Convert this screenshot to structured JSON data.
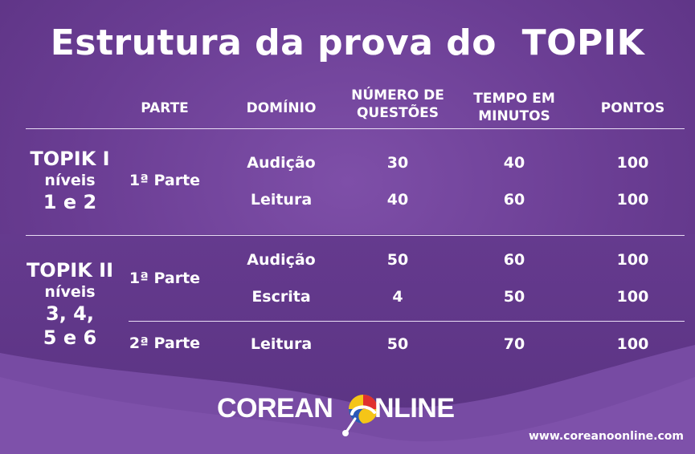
{
  "title": "Estrutura da prova do  TOPIK",
  "headers": {
    "parte": "PARTE",
    "dominio": "DOMÍNIO",
    "num_line1": "NÚMERO DE",
    "num_line2": "QUESTÕES",
    "tempo_line1": "TEMPO EM",
    "tempo_line2": "MINUTOS",
    "pontos": "PONTOS"
  },
  "levels": [
    {
      "line1": "TOPIK I",
      "line2": "níveis",
      "line3": "1 e 2",
      "line4": ""
    },
    {
      "line1": "TOPIK II",
      "line2": "níveis",
      "line3": "3, 4,",
      "line4": "5 e 6"
    }
  ],
  "parts": [
    "1ª Parte",
    "1ª Parte",
    "2ª Parte"
  ],
  "rows": [
    {
      "dominio": "Audição",
      "questoes": "30",
      "tempo": "40",
      "pontos": "100"
    },
    {
      "dominio": "Leitura",
      "questoes": "40",
      "tempo": "60",
      "pontos": "100"
    },
    {
      "dominio": "Audição",
      "questoes": "50",
      "tempo": "60",
      "pontos": "100"
    },
    {
      "dominio": "Escrita",
      "questoes": "4",
      "tempo": "50",
      "pontos": "100"
    },
    {
      "dominio": "Leitura",
      "questoes": "50",
      "tempo": "70",
      "pontos": "100"
    }
  ],
  "logo": {
    "left": "COREAN",
    "right": "NLINE"
  },
  "url": "www.coreanoonline.com",
  "colors": {
    "background": "#6b3f94",
    "logo_yellow": "#f5c518",
    "logo_red": "#e0302f",
    "logo_blue": "#2a59b8"
  }
}
